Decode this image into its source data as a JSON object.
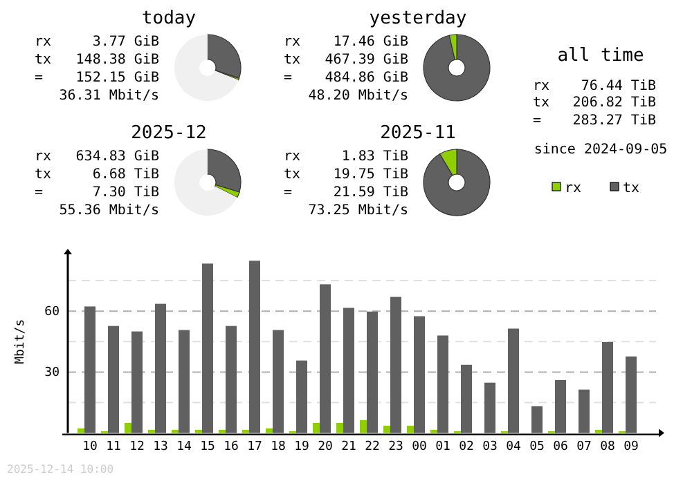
{
  "chart_data": [
    {
      "type": "donut",
      "title": "today",
      "categories": [
        null,
        null,
        null
      ],
      "values": [
        30.2,
        0.8,
        69
      ],
      "colors": [
        "#606060",
        "#8fce00",
        "#f0f0f0"
      ],
      "annotations": [
        "rx",
        "3.77 GiB",
        "tx",
        "148.38 GiB",
        "=",
        "152.15 GiB",
        "36.31 Mbit/s"
      ]
    },
    {
      "type": "donut",
      "title": "yesterday",
      "categories": [
        null,
        null
      ],
      "values": [
        96.4,
        3.6
      ],
      "colors": [
        "#606060",
        "#8fce00"
      ],
      "annotations": [
        "rx",
        "17.46 GiB",
        "tx",
        "467.39 GiB",
        "=",
        "484.86 GiB",
        "48.20 Mbit/s"
      ]
    },
    {
      "type": "other",
      "title": "all time",
      "annotations": [
        "rx",
        "76.44 TiB",
        "tx",
        "206.82 TiB",
        "=",
        "283.27 TiB",
        "since 2024-09-05"
      ]
    },
    {
      "type": "donut",
      "title": "2025-12",
      "categories": [
        null,
        null,
        null
      ],
      "values": [
        29.7,
        2.8,
        67.5
      ],
      "colors": [
        "#606060",
        "#8fce00",
        "#f0f0f0"
      ],
      "annotations": [
        "rx",
        "634.83 GiB",
        "tx",
        "6.68 TiB",
        "=",
        "7.30 TiB",
        "55.36 Mbit/s"
      ]
    },
    {
      "type": "donut",
      "title": "2025-11",
      "categories": [
        null,
        null
      ],
      "values": [
        91.5,
        8.5
      ],
      "colors": [
        "#606060",
        "#8fce00"
      ],
      "annotations": [
        "rx",
        "1.83 TiB",
        "tx",
        "19.75 TiB",
        "=",
        "21.59 TiB",
        "73.25 Mbit/s"
      ]
    },
    {
      "type": "bar",
      "ylabel": "Mbit/s",
      "categories": [
        "10",
        "11",
        "12",
        "13",
        "14",
        "15",
        "16",
        "17",
        "18",
        "19",
        "20",
        "21",
        "22",
        "23",
        "00",
        "01",
        "02",
        "03",
        "04",
        "05",
        "06",
        "07",
        "08",
        "09"
      ],
      "series": [
        {
          "name": "rx",
          "color": "#8fce00",
          "values": [
            2.3,
            0.9,
            5,
            1.6,
            1.6,
            1.6,
            1.6,
            1.6,
            2.3,
            0.9,
            5,
            5,
            6.4,
            3.6,
            3.6,
            1.6,
            0.9,
            0,
            0.9,
            0,
            0.9,
            0,
            1.6,
            0.9
          ]
        },
        {
          "name": "tx",
          "color": "#606060",
          "values": [
            62.3,
            52.7,
            50,
            63.6,
            50.7,
            83.4,
            52.7,
            84.8,
            50.7,
            35.7,
            73.2,
            61.6,
            59.8,
            67,
            57.5,
            48,
            33.6,
            24.8,
            51.4,
            13.2,
            26.1,
            21.4,
            44.8,
            37.7
          ]
        }
      ],
      "ylim": [
        0,
        90
      ],
      "yticks": [
        {
          "value": 15,
          "label": null
        },
        30,
        {
          "value": 45,
          "label": null
        },
        60,
        {
          "value": 75,
          "label": null
        }
      ],
      "grid": "y",
      "legend": "top right",
      "annotations": [
        "2025-12-14 10:00"
      ]
    }
  ]
}
